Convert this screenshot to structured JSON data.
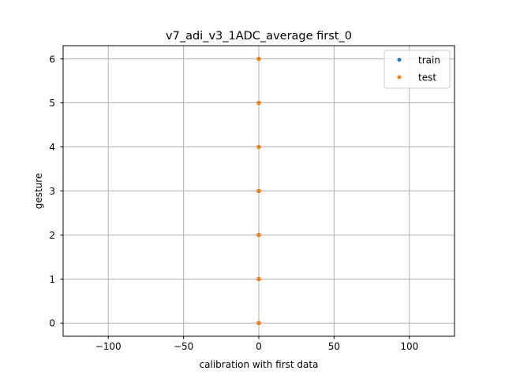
{
  "chart_data": {
    "type": "scatter",
    "title": "v7_adi_v3_1ADC_average first_0",
    "xlabel": "calibration with first data",
    "ylabel": "gesture",
    "xlim": [
      -130,
      130
    ],
    "ylim": [
      -0.3,
      6.3
    ],
    "xticks": [
      -100,
      -50,
      0,
      50,
      100
    ],
    "xtick_labels": [
      "−100",
      "−50",
      "0",
      "50",
      "100"
    ],
    "yticks": [
      0,
      1,
      2,
      3,
      4,
      5,
      6
    ],
    "ytick_labels": [
      "0",
      "1",
      "2",
      "3",
      "4",
      "5",
      "6"
    ],
    "grid": true,
    "legend_position": "top-right",
    "series": [
      {
        "name": "train",
        "color": "#1f77b4",
        "points": [
          [
            0,
            0
          ],
          [
            0,
            1
          ],
          [
            0,
            2
          ],
          [
            0,
            3
          ],
          [
            0,
            4
          ],
          [
            0,
            5
          ],
          [
            0,
            6
          ]
        ]
      },
      {
        "name": "test",
        "color": "#ff7f0e",
        "points": [
          [
            0,
            0
          ],
          [
            0,
            1
          ],
          [
            0,
            2
          ],
          [
            0,
            3
          ],
          [
            0,
            4
          ],
          [
            0,
            5
          ],
          [
            0,
            6
          ]
        ]
      }
    ]
  }
}
